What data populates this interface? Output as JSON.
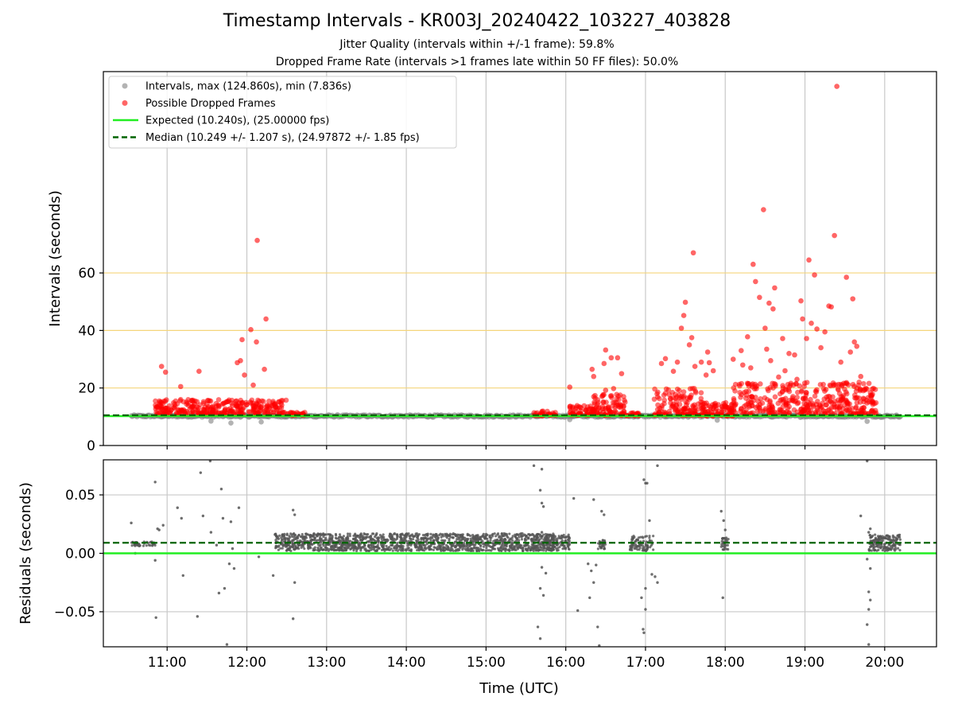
{
  "chart_data": {
    "title": "Timestamp Intervals - KR003J_20240422_103227_403828",
    "subtitle_1": "Jitter Quality (intervals within +/-1 frame): 59.8%",
    "subtitle_2": "Dropped Frame Rate (intervals >1 frames late within 50 FF files): 50.0%",
    "xlabel": "Time (UTC)",
    "x_range_hours": [
      10.2,
      20.65
    ],
    "x_ticks": [
      {
        "v": 11,
        "label": "11:00"
      },
      {
        "v": 12,
        "label": "12:00"
      },
      {
        "v": 13,
        "label": "13:00"
      },
      {
        "v": 14,
        "label": "14:00"
      },
      {
        "v": 15,
        "label": "15:00"
      },
      {
        "v": 16,
        "label": "16:00"
      },
      {
        "v": 17,
        "label": "17:00"
      },
      {
        "v": 18,
        "label": "18:00"
      },
      {
        "v": 19,
        "label": "19:00"
      },
      {
        "v": 20,
        "label": "20:00"
      }
    ],
    "top": {
      "type": "scatter",
      "ylabel": "Intervals (seconds)",
      "ylim": [
        0,
        130
      ],
      "y_ticks": [
        0,
        20,
        40,
        60
      ],
      "reference_lines": [
        20,
        40,
        60
      ],
      "grid": "vertical",
      "legend_position": "upper-left",
      "legend": [
        {
          "label": "Intervals, max (124.860s), min (7.836s)",
          "color": "#808080",
          "kind": "point"
        },
        {
          "label": "Possible Dropped Frames",
          "color": "#ff0000",
          "kind": "point"
        },
        {
          "label": "Expected (10.240s), (25.00000 fps)",
          "color": "#22ee22",
          "kind": "line"
        },
        {
          "label": "Median (10.249 +/- 1.207 s), (24.97872 +/- 1.85 fps)",
          "color": "#006400",
          "kind": "dashed"
        }
      ],
      "expected_value": 10.24,
      "median_value": 10.249,
      "intervals_baseline": {
        "from": 10.55,
        "to": 20.2,
        "value": 10.24
      },
      "dropped_clusters": [
        {
          "from": 10.85,
          "to": 12.5,
          "value_min": 11,
          "value_max": 16,
          "count": 300
        },
        {
          "from": 12.5,
          "to": 12.75,
          "value_min": 10.5,
          "value_max": 11.5,
          "count": 25
        },
        {
          "from": 15.6,
          "to": 15.9,
          "value_min": 10.3,
          "value_max": 12,
          "count": 30
        },
        {
          "from": 16.05,
          "to": 16.35,
          "value_min": 10.5,
          "value_max": 14,
          "count": 60
        },
        {
          "from": 16.35,
          "to": 16.75,
          "value_min": 10.5,
          "value_max": 18,
          "count": 90
        },
        {
          "from": 16.75,
          "to": 16.95,
          "value_min": 10.3,
          "value_max": 11.5,
          "count": 20
        },
        {
          "from": 17.1,
          "to": 17.7,
          "value_min": 10.5,
          "value_max": 20,
          "count": 130
        },
        {
          "from": 17.7,
          "to": 18.1,
          "value_min": 10.3,
          "value_max": 15,
          "count": 90
        },
        {
          "from": 18.1,
          "to": 19.9,
          "value_min": 11,
          "value_max": 22,
          "count": 380
        }
      ],
      "dropped_outliers": [
        [
          10.93,
          27.5
        ],
        [
          10.98,
          25.5
        ],
        [
          11.17,
          20.5
        ],
        [
          11.4,
          25.8
        ],
        [
          11.88,
          28.8
        ],
        [
          11.92,
          29.5
        ],
        [
          11.97,
          24.5
        ],
        [
          11.94,
          36.8
        ],
        [
          12.05,
          40.3
        ],
        [
          12.13,
          71.3
        ],
        [
          12.12,
          36.0
        ],
        [
          12.22,
          26.5
        ],
        [
          12.24,
          44.0
        ],
        [
          12.08,
          21.0
        ],
        [
          16.05,
          20.3
        ],
        [
          16.33,
          26.5
        ],
        [
          16.35,
          24.0
        ],
        [
          16.5,
          33.2
        ],
        [
          16.48,
          28.5
        ],
        [
          16.57,
          30.5
        ],
        [
          16.65,
          30.5
        ],
        [
          16.7,
          25.0
        ],
        [
          16.6,
          19.8
        ],
        [
          16.5,
          19.2
        ],
        [
          17.2,
          28.5
        ],
        [
          17.25,
          30.2
        ],
        [
          17.35,
          25.8
        ],
        [
          17.4,
          29.0
        ],
        [
          17.45,
          40.8
        ],
        [
          17.48,
          45.2
        ],
        [
          17.5,
          49.8
        ],
        [
          17.55,
          35.0
        ],
        [
          17.58,
          37.5
        ],
        [
          17.6,
          67.0
        ],
        [
          17.62,
          27.5
        ],
        [
          17.7,
          29.0
        ],
        [
          17.76,
          24.5
        ],
        [
          17.78,
          32.5
        ],
        [
          17.8,
          28.8
        ],
        [
          17.85,
          26.0
        ],
        [
          18.1,
          30.0
        ],
        [
          18.2,
          33.0
        ],
        [
          18.22,
          28.0
        ],
        [
          18.28,
          37.8
        ],
        [
          18.32,
          27.0
        ],
        [
          18.35,
          63.0
        ],
        [
          18.38,
          57.0
        ],
        [
          18.43,
          51.5
        ],
        [
          18.48,
          82.0
        ],
        [
          18.5,
          40.8
        ],
        [
          18.52,
          33.5
        ],
        [
          18.55,
          49.5
        ],
        [
          18.6,
          47.5
        ],
        [
          18.62,
          54.8
        ],
        [
          18.57,
          29.5
        ],
        [
          18.67,
          23.8
        ],
        [
          18.72,
          37.2
        ],
        [
          18.75,
          26.0
        ],
        [
          18.8,
          32.0
        ],
        [
          18.87,
          31.5
        ],
        [
          18.9,
          23.0
        ],
        [
          18.95,
          50.3
        ],
        [
          18.97,
          44.0
        ],
        [
          19.02,
          37.2
        ],
        [
          19.05,
          64.5
        ],
        [
          19.08,
          42.5
        ],
        [
          19.12,
          59.3
        ],
        [
          19.15,
          40.5
        ],
        [
          19.2,
          34.0
        ],
        [
          19.25,
          39.5
        ],
        [
          19.3,
          48.5
        ],
        [
          19.33,
          48.2
        ],
        [
          19.37,
          73.0
        ],
        [
          19.4,
          124.86
        ],
        [
          19.45,
          29.0
        ],
        [
          19.52,
          58.5
        ],
        [
          19.6,
          51.0
        ],
        [
          19.62,
          36.0
        ],
        [
          19.57,
          32.5
        ],
        [
          19.65,
          34.5
        ],
        [
          19.7,
          24.0
        ]
      ],
      "gray_low_points": [
        [
          11.8,
          7.836
        ],
        [
          11.55,
          8.5
        ],
        [
          12.18,
          8.2
        ],
        [
          19.78,
          8.4
        ],
        [
          16.05,
          9.0
        ],
        [
          17.9,
          8.8
        ]
      ]
    },
    "bottom": {
      "type": "scatter",
      "ylabel": "Residuals (seconds)",
      "ylim": [
        -0.08,
        0.08
      ],
      "y_ticks": [
        -0.05,
        0.0,
        0.05
      ],
      "y_tick_labels": [
        "−0.05",
        "0.00",
        "0.05"
      ],
      "grid": "both",
      "expected_value": 0.0,
      "median_value": 0.009,
      "dense_bands": [
        {
          "from": 10.55,
          "to": 10.85,
          "value_min": 0.006,
          "value_max": 0.01,
          "count": 40
        },
        {
          "from": 12.35,
          "to": 15.85,
          "value_min": 0.002,
          "value_max": 0.017,
          "count": 1500
        },
        {
          "from": 15.75,
          "to": 16.05,
          "value_min": 0.002,
          "value_max": 0.016,
          "count": 120
        },
        {
          "from": 16.4,
          "to": 16.5,
          "value_min": 0.003,
          "value_max": 0.012,
          "count": 30
        },
        {
          "from": 16.8,
          "to": 17.1,
          "value_min": 0.002,
          "value_max": 0.015,
          "count": 90
        },
        {
          "from": 17.95,
          "to": 18.05,
          "value_min": 0.003,
          "value_max": 0.014,
          "count": 30
        },
        {
          "from": 19.8,
          "to": 20.2,
          "value_min": 0.002,
          "value_max": 0.016,
          "count": 180
        }
      ],
      "outliers": [
        [
          10.55,
          0.026
        ],
        [
          10.62,
          0.009
        ],
        [
          10.6,
          0.0
        ],
        [
          10.85,
          0.061
        ],
        [
          10.88,
          0.021
        ],
        [
          10.9,
          0.02
        ],
        [
          10.95,
          0.024
        ],
        [
          10.85,
          -0.006
        ],
        [
          10.86,
          -0.055
        ],
        [
          11.13,
          0.039
        ],
        [
          11.18,
          0.03
        ],
        [
          11.2,
          -0.019
        ],
        [
          11.38,
          -0.054
        ],
        [
          11.42,
          0.069
        ],
        [
          11.45,
          0.032
        ],
        [
          11.54,
          0.079
        ],
        [
          11.55,
          0.018
        ],
        [
          11.62,
          0.007
        ],
        [
          11.65,
          -0.034
        ],
        [
          11.68,
          0.055
        ],
        [
          11.7,
          0.03
        ],
        [
          11.72,
          -0.03
        ],
        [
          11.75,
          -0.078
        ],
        [
          11.78,
          -0.009
        ],
        [
          11.8,
          0.027
        ],
        [
          11.84,
          -0.013
        ],
        [
          11.9,
          0.039
        ],
        [
          11.82,
          0.004
        ],
        [
          12.15,
          -0.003
        ],
        [
          12.33,
          -0.019
        ],
        [
          12.58,
          -0.056
        ],
        [
          12.58,
          0.037
        ],
        [
          12.6,
          0.033
        ],
        [
          12.6,
          -0.025
        ],
        [
          15.6,
          0.075
        ],
        [
          15.65,
          -0.063
        ],
        [
          15.68,
          -0.073
        ],
        [
          15.7,
          0.072
        ],
        [
          15.68,
          0.054
        ],
        [
          15.7,
          0.043
        ],
        [
          15.72,
          0.04
        ],
        [
          15.68,
          -0.03
        ],
        [
          15.72,
          -0.036
        ],
        [
          15.7,
          -0.012
        ],
        [
          15.75,
          -0.017
        ],
        [
          15.7,
          0.018
        ],
        [
          16.1,
          0.047
        ],
        [
          16.15,
          -0.049
        ],
        [
          16.28,
          -0.009
        ],
        [
          16.32,
          -0.015
        ],
        [
          16.35,
          0.046
        ],
        [
          16.38,
          -0.01
        ],
        [
          16.4,
          -0.063
        ],
        [
          16.42,
          -0.079
        ],
        [
          16.45,
          0.036
        ],
        [
          16.48,
          0.033
        ],
        [
          16.3,
          -0.038
        ],
        [
          16.35,
          -0.025
        ],
        [
          16.98,
          0.063
        ],
        [
          17.0,
          0.06
        ],
        [
          17.02,
          0.06
        ],
        [
          17.0,
          -0.048
        ],
        [
          16.98,
          -0.068
        ],
        [
          16.97,
          -0.065
        ],
        [
          17.0,
          -0.03
        ],
        [
          17.05,
          0.028
        ],
        [
          17.15,
          0.075
        ],
        [
          17.12,
          -0.02
        ],
        [
          17.15,
          -0.025
        ],
        [
          17.08,
          -0.018
        ],
        [
          16.95,
          -0.038
        ],
        [
          17.95,
          0.036
        ],
        [
          17.98,
          0.028
        ],
        [
          17.97,
          -0.038
        ],
        [
          18.0,
          0.02
        ],
        [
          19.7,
          0.032
        ],
        [
          19.78,
          0.079
        ],
        [
          19.8,
          -0.078
        ],
        [
          19.78,
          -0.061
        ],
        [
          19.8,
          -0.048
        ],
        [
          19.82,
          -0.04
        ],
        [
          19.8,
          -0.033
        ],
        [
          19.82,
          -0.013
        ],
        [
          19.78,
          -0.005
        ],
        [
          19.82,
          0.021
        ],
        [
          19.8,
          0.018
        ]
      ]
    }
  }
}
